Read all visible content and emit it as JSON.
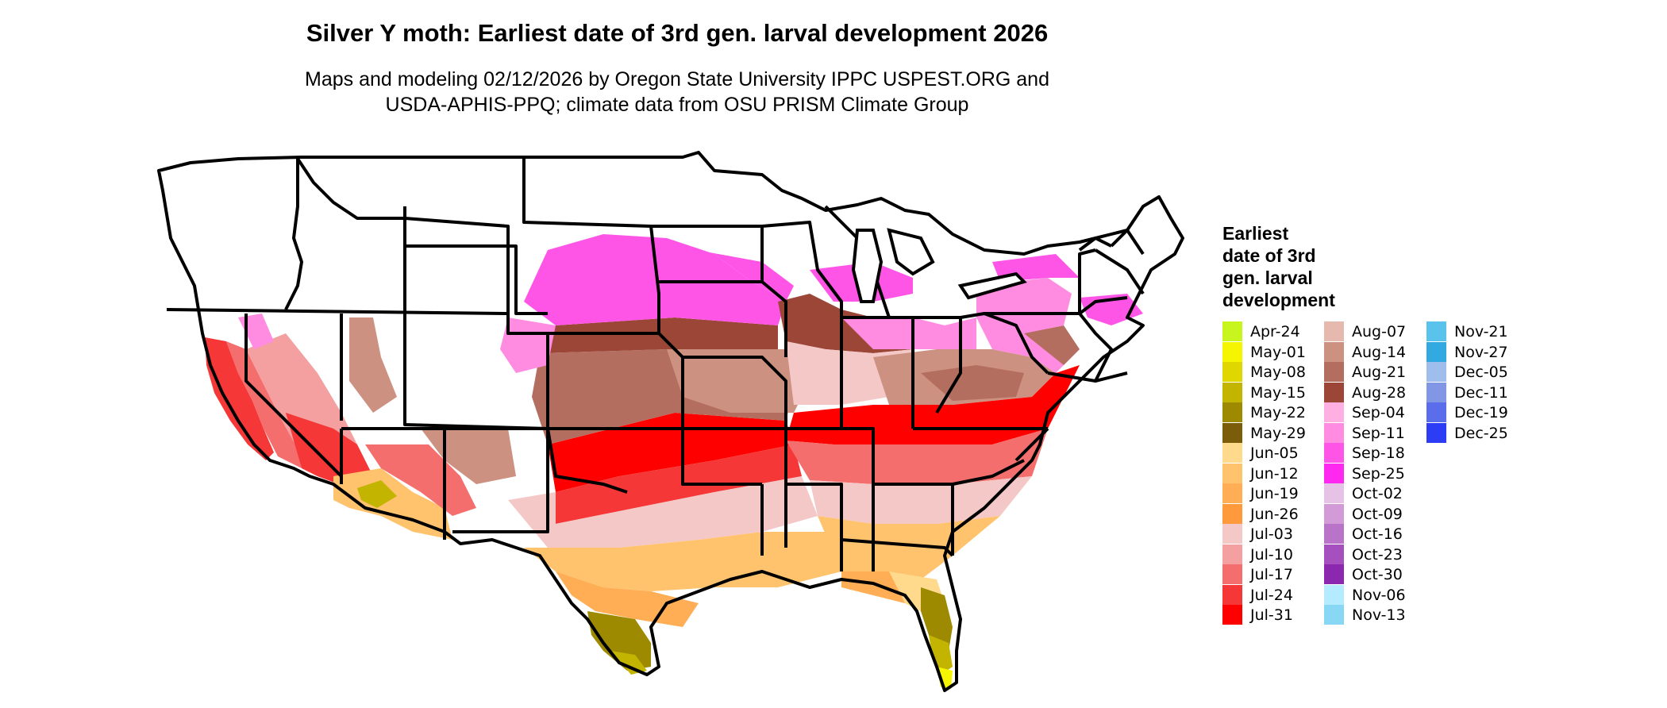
{
  "map": {
    "title": "Silver Y moth: Earliest date of 3rd gen. larval development 2026",
    "subtitle_line1": "Maps and modeling 02/12/2026 by Oregon State University IPPC USPEST.ORG and",
    "subtitle_line2": "USDA-APHIS-PPQ; climate data from OSU PRISM Climate Group",
    "region": "contiguous United States",
    "legend": {
      "title_lines": [
        "Earliest",
        "date of 3rd",
        "gen. larval",
        "development"
      ],
      "items": [
        {
          "label": "Apr-24",
          "color": "#C8F51E"
        },
        {
          "label": "May-01",
          "color": "#F5F500"
        },
        {
          "label": "May-08",
          "color": "#E1D700"
        },
        {
          "label": "May-15",
          "color": "#C3B400"
        },
        {
          "label": "May-22",
          "color": "#9E8A00"
        },
        {
          "label": "May-29",
          "color": "#7A5C0A"
        },
        {
          "label": "Jun-05",
          "color": "#FFD98C"
        },
        {
          "label": "Jun-12",
          "color": "#FFC36E"
        },
        {
          "label": "Jun-19",
          "color": "#FFAE55"
        },
        {
          "label": "Jun-26",
          "color": "#FF9A3C"
        },
        {
          "label": "Jul-03",
          "color": "#F5C8C8"
        },
        {
          "label": "Jul-10",
          "color": "#F5A0A0"
        },
        {
          "label": "Jul-17",
          "color": "#F56E6E"
        },
        {
          "label": "Jul-24",
          "color": "#F53737"
        },
        {
          "label": "Jul-31",
          "color": "#FF0000"
        },
        {
          "label": "Aug-07",
          "color": "#E6B9AF"
        },
        {
          "label": "Aug-14",
          "color": "#CD9182"
        },
        {
          "label": "Aug-21",
          "color": "#B46E5F"
        },
        {
          "label": "Aug-28",
          "color": "#9B4637"
        },
        {
          "label": "Sep-04",
          "color": "#FFAFE1"
        },
        {
          "label": "Sep-11",
          "color": "#FF8CE1"
        },
        {
          "label": "Sep-18",
          "color": "#FF55E6"
        },
        {
          "label": "Sep-25",
          "color": "#FF28F0"
        },
        {
          "label": "Oct-02",
          "color": "#E6C3E6"
        },
        {
          "label": "Oct-09",
          "color": "#D29BD7"
        },
        {
          "label": "Oct-16",
          "color": "#B973C8"
        },
        {
          "label": "Oct-23",
          "color": "#A550BE"
        },
        {
          "label": "Oct-30",
          "color": "#8C28AF"
        },
        {
          "label": "Nov-06",
          "color": "#B4EBFF"
        },
        {
          "label": "Nov-13",
          "color": "#87D7F5"
        },
        {
          "label": "Nov-21",
          "color": "#5AC3EB"
        },
        {
          "label": "Nov-27",
          "color": "#32AAE1"
        },
        {
          "label": "Dec-05",
          "color": "#A0BEEB"
        },
        {
          "label": "Dec-11",
          "color": "#8296E6"
        },
        {
          "label": "Dec-19",
          "color": "#5A6EEB"
        },
        {
          "label": "Dec-25",
          "color": "#2D3CF5"
        }
      ]
    }
  }
}
